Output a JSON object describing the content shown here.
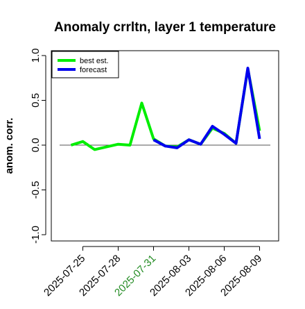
{
  "chart_data": {
    "type": "line",
    "title": "Anomaly crrltn, layer 1 temperature",
    "xlabel": "",
    "ylabel": "anom. corr.",
    "ylim": [
      -1.0,
      1.0
    ],
    "yticks": [
      "-1.0",
      "-0.5",
      "0.0",
      "0.5",
      "1.0"
    ],
    "xtick_labels": [
      "2025-07-25",
      "2025-07-28",
      "2025-07-31",
      "2025-08-03",
      "2025-08-06",
      "2025-08-09"
    ],
    "xtick_highlight": "2025-07-31",
    "legend_position": "top-left",
    "grid": false,
    "zero_line": true,
    "series": [
      {
        "name": "best est.",
        "color": "#00ee00",
        "x": [
          "2025-07-24",
          "2025-07-25",
          "2025-07-26",
          "2025-07-27",
          "2025-07-28",
          "2025-07-29",
          "2025-07-30",
          "2025-07-31",
          "2025-08-01",
          "2025-08-02",
          "2025-08-03",
          "2025-08-04",
          "2025-08-05",
          "2025-08-06",
          "2025-08-07",
          "2025-08-08",
          "2025-08-09"
        ],
        "values": [
          0.0,
          0.04,
          -0.05,
          -0.02,
          0.01,
          0.0,
          0.47,
          0.07,
          -0.01,
          -0.02,
          0.06,
          0.01,
          0.19,
          0.13,
          0.02,
          0.85,
          0.16
        ]
      },
      {
        "name": "forecast",
        "color": "#0000ee",
        "x": [
          "2025-07-31",
          "2025-08-01",
          "2025-08-02",
          "2025-08-03",
          "2025-08-04",
          "2025-08-05",
          "2025-08-06",
          "2025-08-07",
          "2025-08-08",
          "2025-08-09"
        ],
        "values": [
          0.06,
          -0.01,
          -0.03,
          0.06,
          0.01,
          0.21,
          0.12,
          0.02,
          0.86,
          0.07
        ]
      }
    ]
  },
  "colors": {
    "highlight_tick": "#228B22",
    "text": "#000000"
  }
}
